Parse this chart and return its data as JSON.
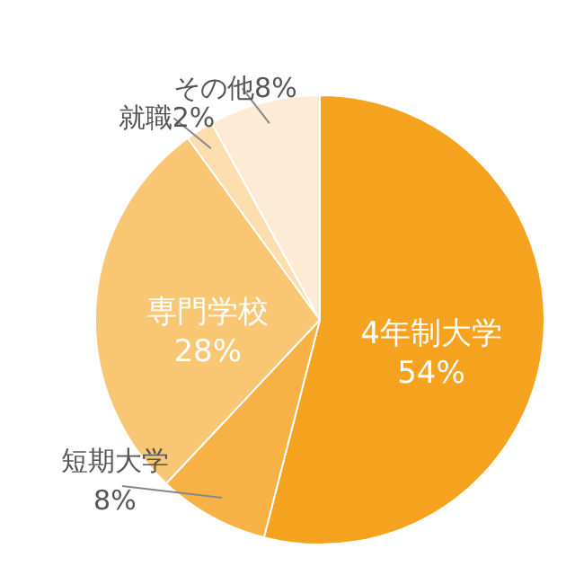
{
  "chart_data": {
    "type": "pie",
    "categories": [
      "4年制大学",
      "短期大学",
      "専門学校",
      "就職",
      "その他"
    ],
    "values": [
      54,
      8,
      28,
      2,
      8
    ],
    "colors": [
      "#f5a21e",
      "#f7b144",
      "#f9c674",
      "#fbddae",
      "#fdebd6"
    ],
    "value_labels": [
      "54%",
      "8%",
      "28%",
      "2%",
      "8%"
    ]
  }
}
